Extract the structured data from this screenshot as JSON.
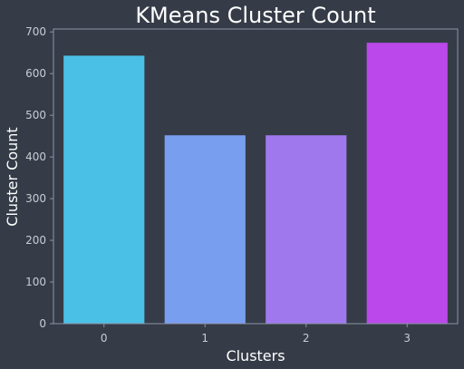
{
  "chart_data": {
    "type": "bar",
    "title": "KMeans Cluster Count",
    "xlabel": "Clusters",
    "ylabel": "Cluster Count",
    "categories": [
      "0",
      "1",
      "2",
      "3"
    ],
    "values": [
      643,
      452,
      452,
      674
    ],
    "ylim": [
      0,
      707
    ],
    "yticks": [
      0,
      100,
      200,
      300,
      400,
      500,
      600,
      700
    ],
    "bar_colors": [
      "#4bc0e6",
      "#789ef0",
      "#a078ee",
      "#bb48ea"
    ],
    "grid": false,
    "legend": "none"
  },
  "colors": {
    "background": "#353c48",
    "axes_frame": "#8b93a6",
    "text": "#ffffff",
    "tick_text": "#c8ccd4"
  }
}
